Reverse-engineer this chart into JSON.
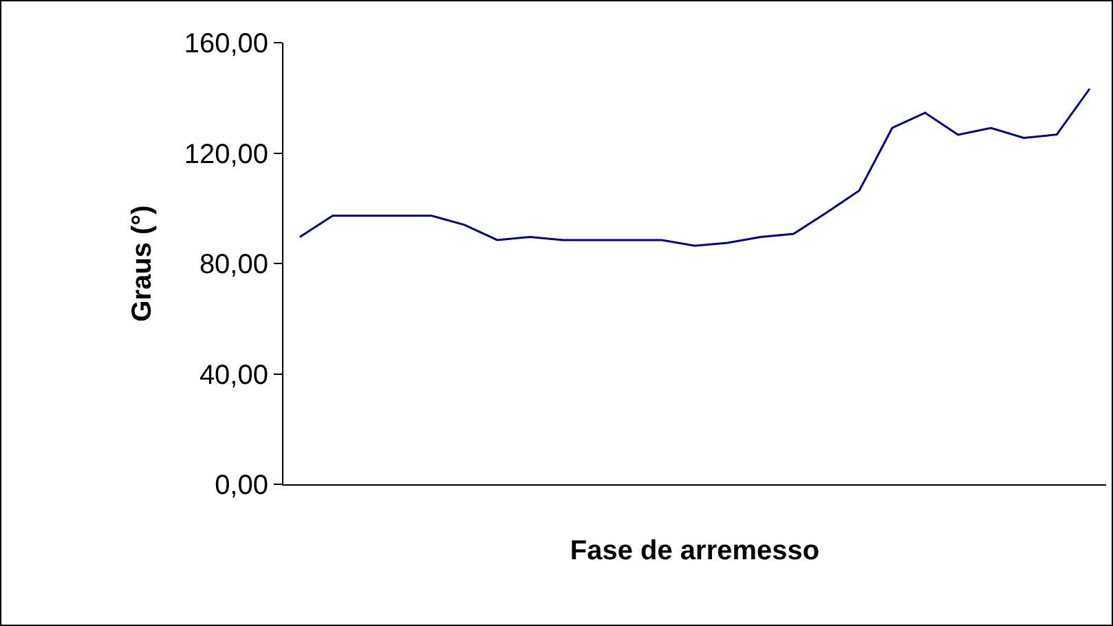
{
  "chart_data": {
    "type": "line",
    "xlabel": "Fase de arremesso",
    "ylabel": "Graus (°)",
    "categories": [
      null,
      null,
      null,
      null,
      null,
      null,
      null,
      null,
      null,
      null,
      null,
      null,
      null,
      null,
      null,
      null,
      null,
      null,
      null,
      null,
      null,
      null,
      null,
      null,
      null
    ],
    "series": [
      {
        "color": "#000080",
        "values": [
          89.6,
          97.3,
          97.3,
          97.3,
          97.3,
          94,
          88.5,
          89.6,
          88.5,
          88.5,
          88.5,
          88.5,
          86.4,
          87.5,
          89.6,
          90.7,
          98.4,
          106.4,
          129.1,
          134.6,
          126.6,
          129.1,
          125.5,
          126.7,
          143.3
        ]
      }
    ],
    "ylim": [
      0,
      160
    ],
    "yticks": [
      {
        "value": 0,
        "label": "0,00"
      },
      {
        "value": 40,
        "label": "40,00"
      },
      {
        "value": 80,
        "label": "80,00"
      },
      {
        "value": 120,
        "label": "120,00"
      },
      {
        "value": 160,
        "label": "160,00"
      }
    ],
    "grid": false,
    "marker": "none",
    "line_style": "solid",
    "tick_labels": "y"
  }
}
